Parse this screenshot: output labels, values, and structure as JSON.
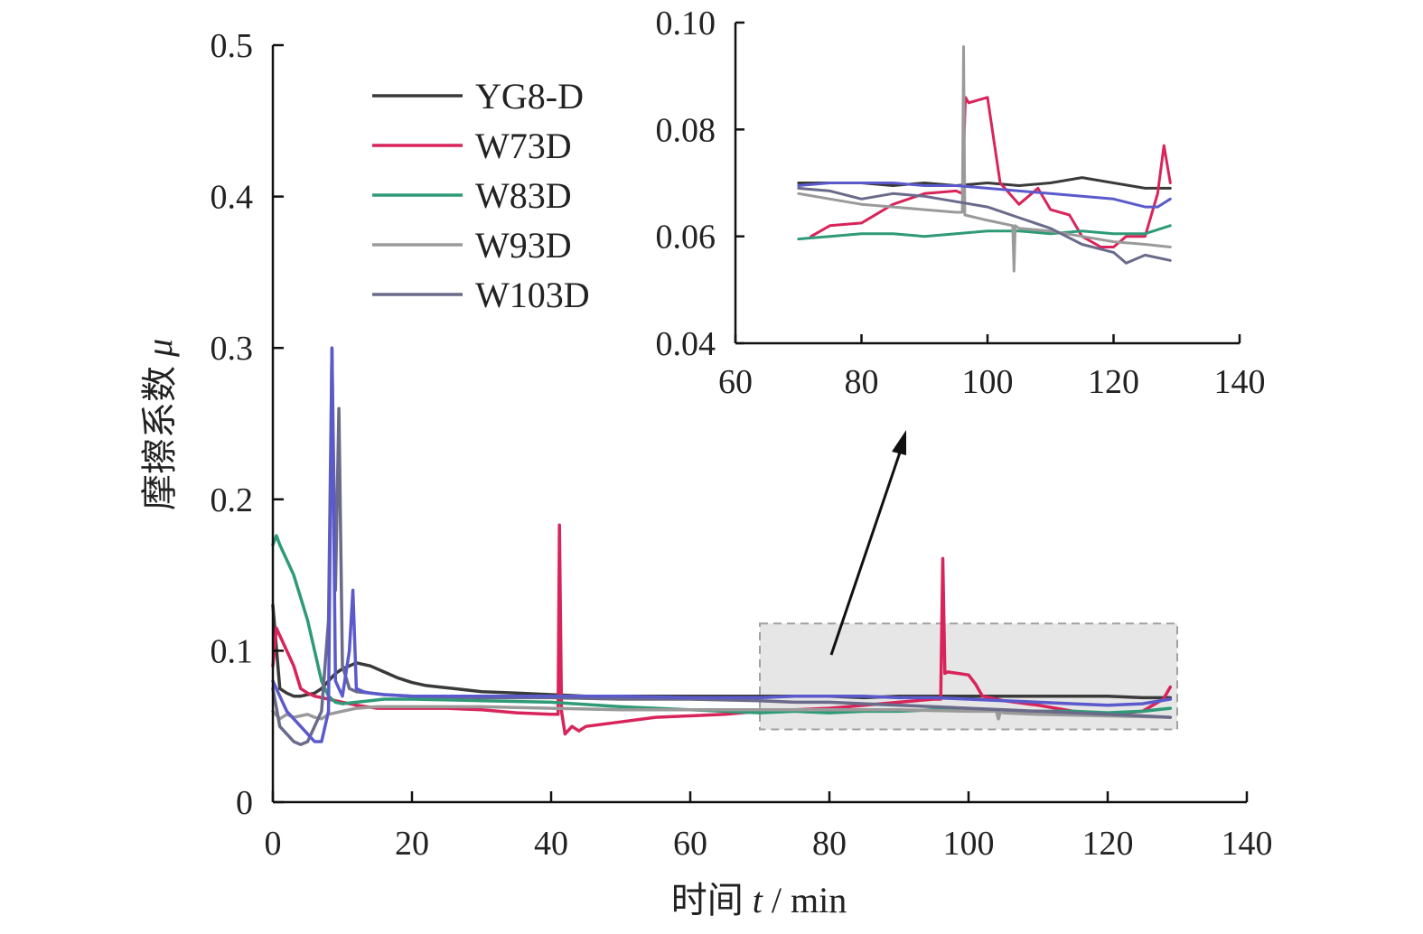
{
  "chart_data": [
    {
      "type": "line",
      "title": "",
      "xlabel": "时间 t / min",
      "xlabel_prefix": "时间 ",
      "xlabel_var": "t",
      "xlabel_suffix": " / min",
      "ylabel": "摩擦系数 μ",
      "ylabel_prefix": "摩擦系数 ",
      "ylabel_var": "μ",
      "xlim": [
        0,
        140
      ],
      "ylim": [
        0,
        0.5
      ],
      "xticks": [
        0,
        20,
        40,
        60,
        80,
        100,
        120,
        140
      ],
      "yticks": [
        0,
        0.1,
        0.2,
        0.3,
        0.4,
        0.5
      ],
      "xtick_labels": [
        "0",
        "20",
        "40",
        "60",
        "80",
        "100",
        "120",
        "140"
      ],
      "ytick_labels": [
        "0",
        "0.1",
        "0.2",
        "0.3",
        "0.4",
        "0.5"
      ],
      "grid": false,
      "legend": "top-left",
      "highlight_region": {
        "x": [
          70,
          130
        ],
        "y": [
          0.048,
          0.118
        ]
      },
      "series": [
        {
          "name": "YG8-D",
          "color": "#3a3a3a",
          "x": [
            0,
            1,
            2,
            3,
            4,
            5,
            6,
            7,
            8,
            9,
            10,
            11,
            12,
            14,
            16,
            18,
            20,
            22,
            24,
            26,
            28,
            30,
            35,
            40,
            45,
            50,
            55,
            60,
            65,
            70,
            75,
            80,
            85,
            90,
            95,
            100,
            105,
            110,
            115,
            120,
            125,
            129
          ],
          "y": [
            0.13,
            0.075,
            0.072,
            0.07,
            0.07,
            0.071,
            0.072,
            0.075,
            0.08,
            0.085,
            0.088,
            0.09,
            0.092,
            0.09,
            0.086,
            0.082,
            0.079,
            0.077,
            0.076,
            0.075,
            0.074,
            0.073,
            0.072,
            0.071,
            0.07,
            0.07,
            0.07,
            0.07,
            0.07,
            0.07,
            0.07,
            0.07,
            0.069,
            0.07,
            0.07,
            0.07,
            0.07,
            0.07,
            0.07,
            0.07,
            0.069,
            0.069
          ]
        },
        {
          "name": "W73D",
          "color": "#d8245a",
          "x": [
            0,
            0.5,
            1,
            2,
            3,
            4,
            5,
            6,
            8,
            10,
            12,
            15,
            20,
            25,
            30,
            35,
            40,
            41,
            41.2,
            41.5,
            42,
            43,
            44,
            45,
            50,
            55,
            60,
            65,
            70,
            75,
            80,
            85,
            90,
            95,
            96,
            96.3,
            96.6,
            97,
            100,
            101,
            102,
            105,
            110,
            115,
            120,
            125,
            128,
            129
          ],
          "y": [
            0.09,
            0.115,
            0.11,
            0.1,
            0.09,
            0.075,
            0.072,
            0.07,
            0.068,
            0.066,
            0.064,
            0.062,
            0.062,
            0.062,
            0.061,
            0.059,
            0.058,
            0.058,
            0.183,
            0.06,
            0.045,
            0.05,
            0.047,
            0.05,
            0.053,
            0.056,
            0.057,
            0.058,
            0.06,
            0.061,
            0.062,
            0.064,
            0.066,
            0.068,
            0.068,
            0.161,
            0.085,
            0.086,
            0.084,
            0.078,
            0.07,
            0.067,
            0.064,
            0.06,
            0.058,
            0.06,
            0.068,
            0.076
          ]
        },
        {
          "name": "W83D",
          "color": "#2e9a78",
          "x": [
            0,
            0.5,
            1,
            2,
            3,
            4,
            5,
            6,
            7,
            8,
            9,
            10,
            12,
            14,
            16,
            20,
            30,
            40,
            50,
            60,
            70,
            75,
            80,
            85,
            90,
            95,
            100,
            105,
            110,
            115,
            120,
            125,
            129
          ],
          "y": [
            0.17,
            0.176,
            0.17,
            0.16,
            0.15,
            0.135,
            0.12,
            0.1,
            0.08,
            0.07,
            0.066,
            0.065,
            0.066,
            0.067,
            0.068,
            0.068,
            0.067,
            0.066,
            0.063,
            0.061,
            0.059,
            0.06,
            0.059,
            0.06,
            0.06,
            0.061,
            0.061,
            0.06,
            0.06,
            0.06,
            0.059,
            0.06,
            0.062
          ]
        },
        {
          "name": "W93D",
          "color": "#9a9a9a",
          "x": [
            0,
            1,
            2,
            3,
            4,
            5,
            6,
            7,
            8,
            10,
            12,
            15,
            20,
            30,
            40,
            50,
            60,
            70,
            80,
            90,
            100,
            104,
            104.3,
            104.6,
            105,
            110,
            120,
            129
          ],
          "y": [
            0.06,
            0.055,
            0.058,
            0.056,
            0.057,
            0.058,
            0.056,
            0.055,
            0.058,
            0.06,
            0.062,
            0.063,
            0.063,
            0.063,
            0.062,
            0.061,
            0.061,
            0.061,
            0.061,
            0.061,
            0.06,
            0.06,
            0.055,
            0.06,
            0.059,
            0.058,
            0.057,
            0.056
          ]
        },
        {
          "name": "W103D",
          "color": "#6a6a8a",
          "x": [
            0,
            1,
            2,
            3,
            4,
            5,
            6,
            7,
            8,
            8.5,
            9,
            9.5,
            10,
            11,
            12,
            14,
            16,
            20,
            30,
            40,
            50,
            60,
            70,
            75,
            80,
            85,
            90,
            95,
            100,
            105,
            110,
            115,
            120,
            125,
            129
          ],
          "y": [
            0.075,
            0.05,
            0.045,
            0.04,
            0.038,
            0.04,
            0.05,
            0.06,
            0.12,
            0.3,
            0.14,
            0.26,
            0.09,
            0.075,
            0.073,
            0.072,
            0.071,
            0.07,
            0.069,
            0.069,
            0.068,
            0.068,
            0.067,
            0.066,
            0.066,
            0.065,
            0.064,
            0.063,
            0.062,
            0.061,
            0.06,
            0.059,
            0.058,
            0.057,
            0.056
          ]
        },
        {
          "name": "",
          "color": "#5a5acc",
          "x": [
            0,
            1,
            2,
            3,
            4,
            5,
            6,
            7,
            8,
            8.5,
            9,
            10,
            11,
            11.5,
            12,
            13,
            14,
            16,
            20,
            30,
            40,
            50,
            60,
            70,
            75,
            80,
            85,
            90,
            95,
            100,
            105,
            110,
            115,
            120,
            125,
            129
          ],
          "y": [
            0.08,
            0.07,
            0.06,
            0.055,
            0.05,
            0.045,
            0.04,
            0.04,
            0.06,
            0.3,
            0.08,
            0.07,
            0.1,
            0.14,
            0.075,
            0.073,
            0.072,
            0.071,
            0.07,
            0.07,
            0.07,
            0.07,
            0.069,
            0.069,
            0.07,
            0.07,
            0.07,
            0.069,
            0.069,
            0.068,
            0.067,
            0.066,
            0.065,
            0.064,
            0.065,
            0.068
          ]
        }
      ]
    },
    {
      "type": "line",
      "title": "",
      "xlabel": "",
      "ylabel": "",
      "xlim": [
        60,
        140
      ],
      "ylim": [
        0.04,
        0.1
      ],
      "xticks": [
        60,
        80,
        100,
        120,
        140
      ],
      "yticks": [
        0.04,
        0.06,
        0.08,
        0.1
      ],
      "xtick_labels": [
        "60",
        "80",
        "100",
        "120",
        "140"
      ],
      "ytick_labels": [
        "0.04",
        "0.06",
        "0.08",
        "0.10"
      ],
      "grid": false,
      "series": [
        {
          "name": "YG8-D",
          "color": "#3a3a3a",
          "x": [
            70,
            75,
            80,
            85,
            90,
            95,
            100,
            105,
            110,
            115,
            120,
            125,
            129
          ],
          "y": [
            0.07,
            0.07,
            0.07,
            0.0695,
            0.07,
            0.0695,
            0.07,
            0.0695,
            0.07,
            0.071,
            0.07,
            0.069,
            0.069
          ]
        },
        {
          "name": "W73D",
          "color": "#d8245a",
          "x": [
            72,
            75,
            80,
            85,
            90,
            95,
            96,
            96.5,
            97,
            100,
            101,
            102,
            105,
            108,
            110,
            113,
            115,
            118,
            120,
            122,
            125,
            127,
            128,
            129
          ],
          "y": [
            0.06,
            0.062,
            0.0625,
            0.066,
            0.068,
            0.0685,
            0.068,
            0.086,
            0.085,
            0.086,
            0.078,
            0.07,
            0.066,
            0.069,
            0.065,
            0.064,
            0.06,
            0.058,
            0.058,
            0.06,
            0.06,
            0.068,
            0.077,
            0.07
          ]
        },
        {
          "name": "W83D",
          "color": "#2e9a78",
          "x": [
            70,
            75,
            80,
            85,
            90,
            95,
            100,
            105,
            110,
            115,
            120,
            125,
            129
          ],
          "y": [
            0.0595,
            0.06,
            0.0605,
            0.0605,
            0.06,
            0.0605,
            0.061,
            0.061,
            0.0605,
            0.061,
            0.0605,
            0.0605,
            0.062
          ]
        },
        {
          "name": "W93D",
          "color": "#9a9a9a",
          "x": [
            70,
            75,
            80,
            85,
            90,
            95,
            96,
            96.2,
            96.4,
            100,
            104,
            104.2,
            104.4,
            105,
            110,
            115,
            120,
            125,
            129
          ],
          "y": [
            0.068,
            0.067,
            0.066,
            0.0655,
            0.065,
            0.0645,
            0.0645,
            0.0955,
            0.064,
            0.063,
            0.062,
            0.0535,
            0.062,
            0.0615,
            0.061,
            0.06,
            0.059,
            0.0585,
            0.058
          ]
        },
        {
          "name": "W103D",
          "color": "#6a6a8a",
          "x": [
            70,
            75,
            80,
            85,
            90,
            95,
            100,
            105,
            110,
            115,
            120,
            122,
            125,
            129
          ],
          "y": [
            0.069,
            0.0685,
            0.067,
            0.068,
            0.0675,
            0.0665,
            0.0655,
            0.0635,
            0.0615,
            0.0585,
            0.057,
            0.055,
            0.0565,
            0.0555
          ]
        },
        {
          "name": "",
          "color": "#5a5acc",
          "x": [
            70,
            75,
            80,
            85,
            90,
            95,
            100,
            105,
            110,
            115,
            120,
            125,
            127,
            129
          ],
          "y": [
            0.0695,
            0.07,
            0.07,
            0.07,
            0.0695,
            0.0695,
            0.069,
            0.0685,
            0.068,
            0.0675,
            0.067,
            0.0655,
            0.0655,
            0.067
          ]
        }
      ]
    }
  ]
}
